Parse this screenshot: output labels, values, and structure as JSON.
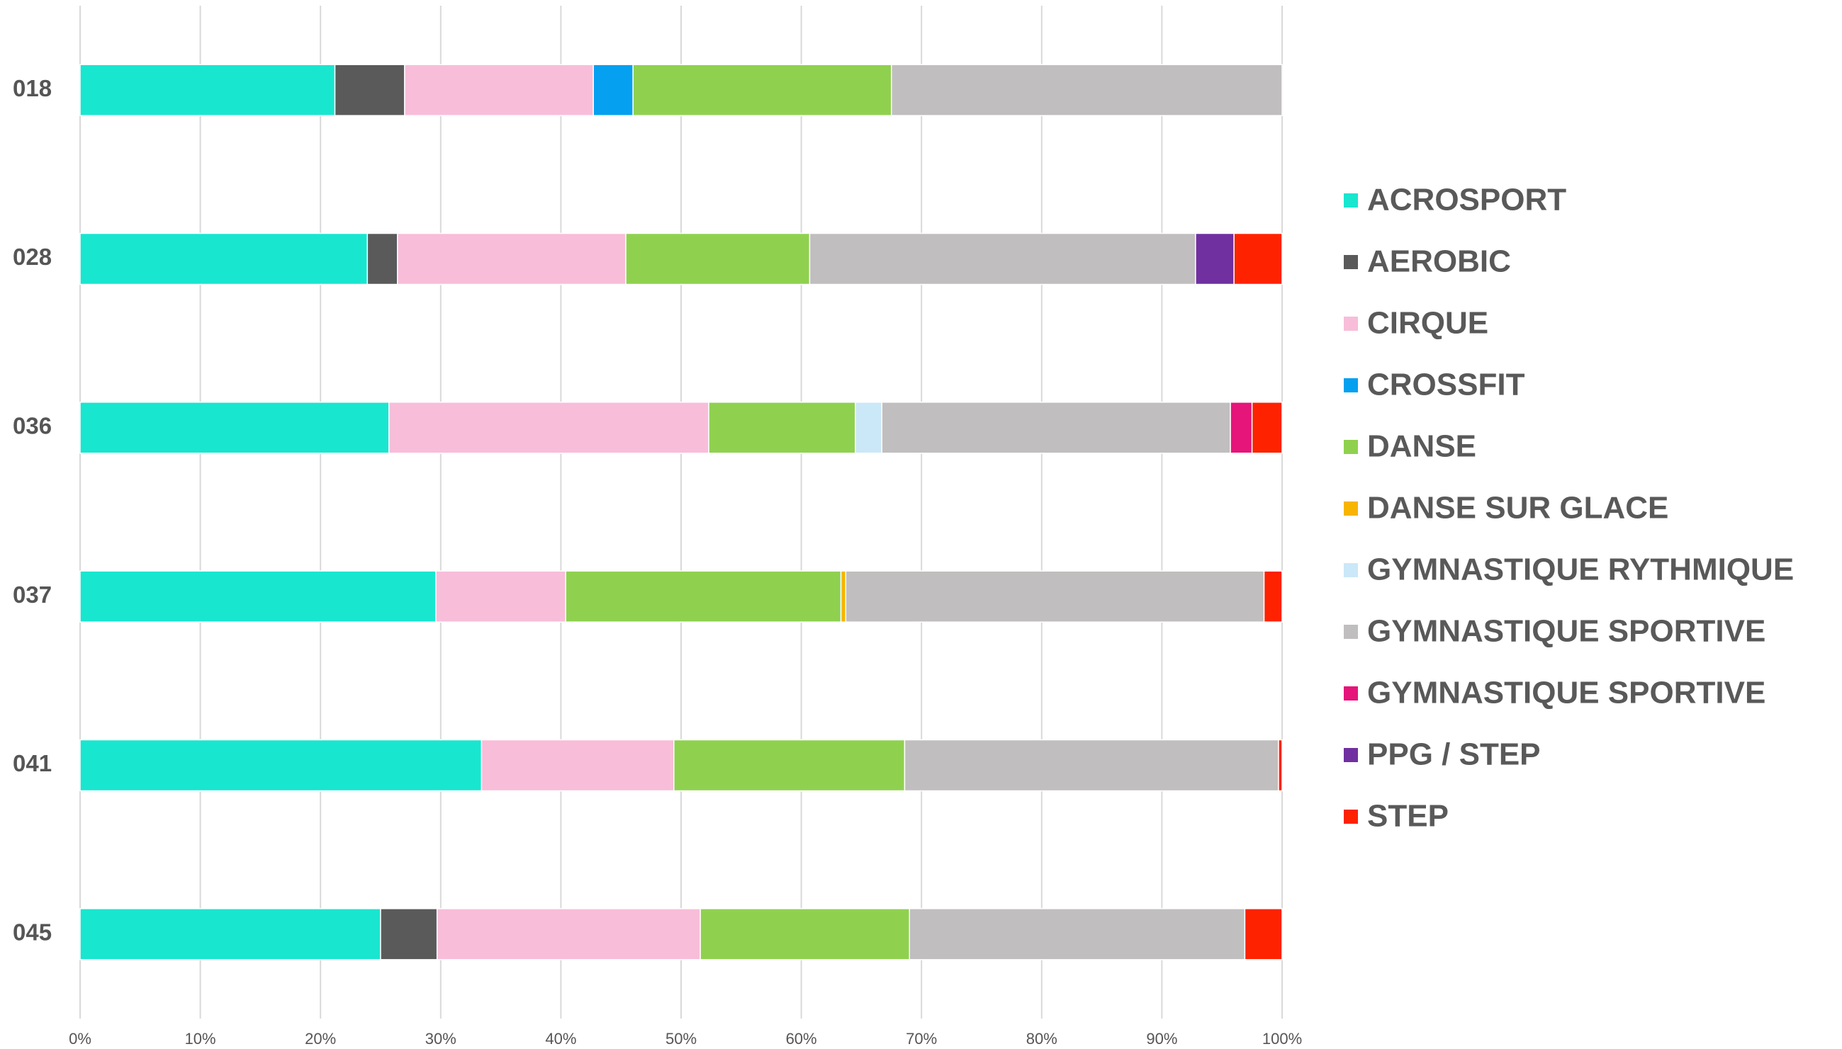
{
  "chart_data": {
    "type": "stacked-bar-horizontal",
    "categories": [
      "018",
      "028",
      "036",
      "037",
      "041",
      "045"
    ],
    "series": [
      {
        "name": "ACROSPORT",
        "color": "#19e6cf",
        "values": [
          21.2,
          23.9,
          25.7,
          29.6,
          33.4,
          25.0
        ]
      },
      {
        "name": "AEROBIC",
        "color": "#5a5a5a",
        "values": [
          5.8,
          2.5,
          0,
          0,
          0,
          4.7
        ]
      },
      {
        "name": "CIRQUE",
        "color": "#f8bdd9",
        "values": [
          15.7,
          19.0,
          26.6,
          10.8,
          16.0,
          21.9
        ]
      },
      {
        "name": "CROSSFIT",
        "color": "#05a0f0",
        "values": [
          3.3,
          0,
          0,
          0,
          0,
          0
        ]
      },
      {
        "name": "DANSE",
        "color": "#8fd14f",
        "values": [
          21.5,
          15.3,
          12.2,
          22.9,
          19.2,
          17.4
        ]
      },
      {
        "name": "DANSE SUR GLACE",
        "color": "#f7b500",
        "values": [
          0,
          0,
          0,
          0.4,
          0,
          0
        ]
      },
      {
        "name": "GYMNASTIQUE RYTHMIQUE",
        "color": "#cbe8f8",
        "values": [
          0,
          0,
          2.2,
          0,
          0,
          0
        ]
      },
      {
        "name": "GYMNASTIQUE SPORTIVE",
        "color": "#c0bebe",
        "values": [
          32.5,
          32.1,
          29.0,
          34.8,
          31.1,
          27.9
        ]
      },
      {
        "name": "GYMNASTIQUE SPORTIVE",
        "color": "#e5157a",
        "values": [
          0,
          0,
          1.8,
          0,
          0,
          0
        ]
      },
      {
        "name": "PPG / STEP",
        "color": "#7030a0",
        "values": [
          0,
          3.2,
          0,
          0,
          0,
          0
        ]
      },
      {
        "name": "STEP",
        "color": "#ff2200",
        "values": [
          0,
          4.0,
          2.5,
          1.5,
          0.3,
          3.1
        ]
      }
    ],
    "xlim": [
      0,
      100
    ],
    "xticks": [
      {
        "value": 0,
        "label": "0%"
      },
      {
        "value": 10,
        "label": "10%"
      },
      {
        "value": 20,
        "label": "20%"
      },
      {
        "value": 30,
        "label": "30%"
      },
      {
        "value": 40,
        "label": "40%"
      },
      {
        "value": 50,
        "label": "50%"
      },
      {
        "value": 60,
        "label": "60%"
      },
      {
        "value": 70,
        "label": "70%"
      },
      {
        "value": 80,
        "label": "80%"
      },
      {
        "value": 90,
        "label": "90%"
      },
      {
        "value": 100,
        "label": "100%"
      }
    ],
    "grid": true,
    "legend": "right"
  }
}
